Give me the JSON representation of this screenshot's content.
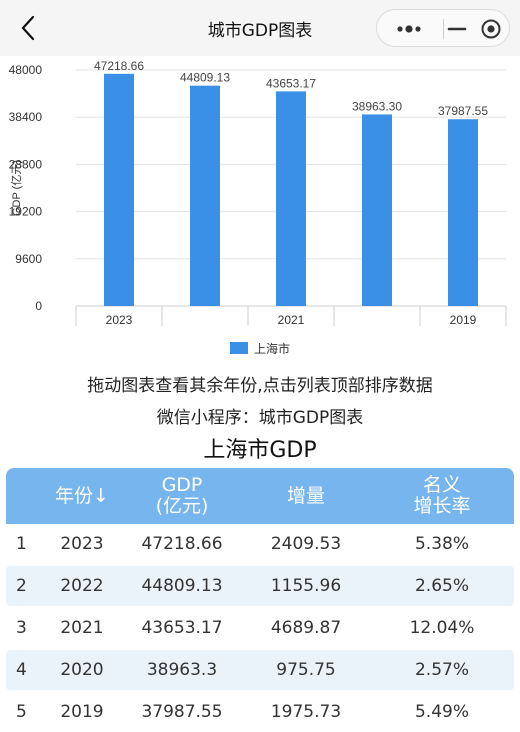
{
  "nav": {
    "title": "城市GDP图表",
    "back_icon": "chevron-left-icon",
    "more_icon": "more-dots-icon",
    "minimize_icon": "minus-icon",
    "close_icon": "target-circle-icon"
  },
  "chart_data": {
    "type": "bar",
    "categories": [
      "2023",
      "2022",
      "2021",
      "2020",
      "2019"
    ],
    "x_tick_labels": [
      "2023",
      "",
      "2021",
      "",
      "2019"
    ],
    "series": [
      {
        "name": "上海市",
        "values": [
          47218.66,
          44809.13,
          43653.17,
          38963.3,
          37987.55
        ],
        "color": "#3a8fe6"
      }
    ],
    "data_labels": [
      "47218.66",
      "44809.13",
      "43653.17",
      "38963.30",
      "37987.55"
    ],
    "title": "",
    "xlabel": "",
    "ylabel": "GDP (亿元)",
    "ylim": [
      0,
      48000
    ],
    "yticks": [
      "0",
      "9600",
      "19200",
      "28800",
      "38400",
      "48000"
    ],
    "grid": true,
    "legend_position": "bottom-center"
  },
  "captions": {
    "hint": "拖动图表查看其余年份,点击列表顶部排序数据",
    "miniprogram": "微信小程序：城市GDP图表",
    "table_title": "上海市GDP"
  },
  "table": {
    "headers": {
      "rank": "",
      "year": "年份↓",
      "gdp_line1": "GDP",
      "gdp_line2": "(亿元)",
      "increase": "增量",
      "rate_line1": "名义",
      "rate_line2": "增长率"
    },
    "rows": [
      {
        "rank": "1",
        "year": "2023",
        "gdp": "47218.66",
        "increase": "2409.53",
        "rate": "5.38%"
      },
      {
        "rank": "2",
        "year": "2022",
        "gdp": "44809.13",
        "increase": "1155.96",
        "rate": "2.65%"
      },
      {
        "rank": "3",
        "year": "2021",
        "gdp": "43653.17",
        "increase": "4689.87",
        "rate": "12.04%"
      },
      {
        "rank": "4",
        "year": "2020",
        "gdp": "38963.3",
        "increase": "975.75",
        "rate": "2.57%"
      },
      {
        "rank": "5",
        "year": "2019",
        "gdp": "37987.55",
        "increase": "1975.73",
        "rate": "5.49%"
      }
    ]
  },
  "colors": {
    "bar": "#3a8fe6",
    "header_bg": "#77b5ee",
    "alt_row_bg": "#eaf3fa",
    "navbar_bg": "#f5f5f5"
  }
}
